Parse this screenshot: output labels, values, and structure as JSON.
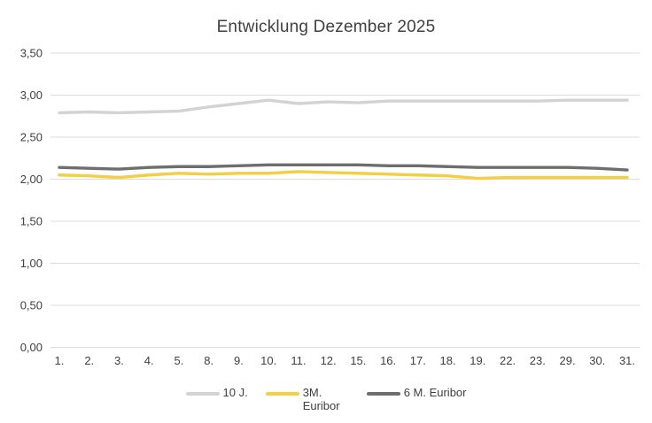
{
  "title": "Entwicklung Dezember 2025",
  "colors": {
    "gridline": "#dcdcdc",
    "axis_text": "#404040",
    "title_text": "#404040",
    "background": "#ffffff"
  },
  "chart_data": {
    "type": "line",
    "title": "Entwicklung Dezember 2025",
    "xlabel": "",
    "ylabel": "",
    "ylim": [
      0,
      3.5
    ],
    "grid": "horizontal",
    "legend_position": "bottom",
    "categories": [
      "1.",
      "2.",
      "3.",
      "4.",
      "5.",
      "8.",
      "9.",
      "10.",
      "11.",
      "12.",
      "15.",
      "16.",
      "17.",
      "18.",
      "19.",
      "22.",
      "23.",
      "29.",
      "30.",
      "31."
    ],
    "y_ticks": [
      {
        "value": 0.0,
        "label": "0,00"
      },
      {
        "value": 0.5,
        "label": "0,50"
      },
      {
        "value": 1.0,
        "label": "1,00"
      },
      {
        "value": 1.5,
        "label": "1,50"
      },
      {
        "value": 2.0,
        "label": "2,00"
      },
      {
        "value": 2.5,
        "label": "2,50"
      },
      {
        "value": 3.0,
        "label": "3,00"
      },
      {
        "value": 3.5,
        "label": "3,50"
      }
    ],
    "series": [
      {
        "name": "10 J.",
        "color": "#d3d3d3",
        "values": [
          2.79,
          2.8,
          2.79,
          2.8,
          2.81,
          2.86,
          2.9,
          2.94,
          2.9,
          2.92,
          2.91,
          2.93,
          2.93,
          2.93,
          2.93,
          2.93,
          2.93,
          2.94,
          2.94,
          2.94
        ]
      },
      {
        "name": "3M. Euribor",
        "color": "#f2cf43",
        "values": [
          2.05,
          2.04,
          2.02,
          2.05,
          2.07,
          2.06,
          2.07,
          2.07,
          2.09,
          2.08,
          2.07,
          2.06,
          2.05,
          2.04,
          2.01,
          2.02,
          2.02,
          2.02,
          2.02,
          2.02
        ]
      },
      {
        "name": "6 M. Euribor",
        "color": "#6e6e6e",
        "values": [
          2.14,
          2.13,
          2.12,
          2.14,
          2.15,
          2.15,
          2.16,
          2.17,
          2.17,
          2.17,
          2.17,
          2.16,
          2.16,
          2.15,
          2.14,
          2.14,
          2.14,
          2.14,
          2.13,
          2.11
        ]
      }
    ]
  }
}
